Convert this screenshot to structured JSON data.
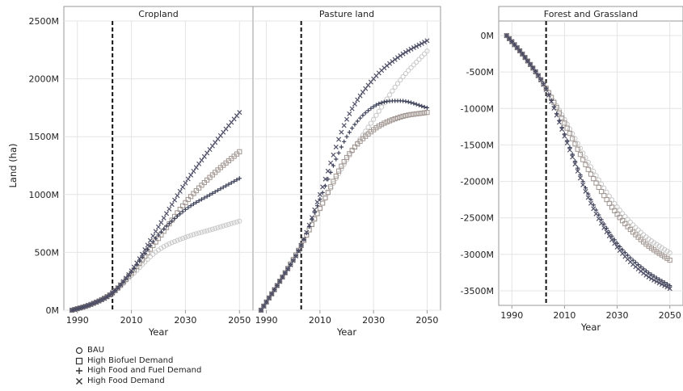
{
  "chart_data": [
    {
      "type": "scatter",
      "title": "Cropland",
      "xlabel": "Year",
      "ylabel": "Land (ha)",
      "xlim": [
        1985,
        2055
      ],
      "ylim": [
        0,
        2500000000
      ],
      "xticks": [
        1990,
        2010,
        2030,
        2050
      ],
      "yticks": [
        0,
        500000000,
        1000000000,
        1500000000,
        2000000000,
        2500000000
      ],
      "ytick_labels": [
        "0M",
        "500M",
        "1000M",
        "1500M",
        "2000M",
        "2500M"
      ],
      "reference_year": 2003,
      "grid": true,
      "series": [
        {
          "name": "BAU",
          "x": [
            1988,
            1995,
            2003,
            2010,
            2020,
            2030,
            2040,
            2050
          ],
          "values": [
            0,
            50000000,
            150000000,
            300000000,
            520000000,
            630000000,
            700000000,
            770000000
          ]
        },
        {
          "name": "High Biofuel Demand",
          "x": [
            1988,
            1995,
            2003,
            2010,
            2020,
            2030,
            2040,
            2050
          ],
          "values": [
            0,
            50000000,
            150000000,
            320000000,
            620000000,
            930000000,
            1170000000,
            1370000000
          ]
        },
        {
          "name": "High Food and Fuel Demand",
          "x": [
            1988,
            1995,
            2003,
            2010,
            2020,
            2030,
            2040,
            2050
          ],
          "values": [
            0,
            50000000,
            150000000,
            330000000,
            650000000,
            870000000,
            1010000000,
            1140000000
          ]
        },
        {
          "name": "High Food Demand",
          "x": [
            1988,
            1995,
            2003,
            2010,
            2020,
            2030,
            2040,
            2050
          ],
          "values": [
            0,
            50000000,
            150000000,
            340000000,
            720000000,
            1100000000,
            1420000000,
            1710000000
          ]
        }
      ]
    },
    {
      "type": "scatter",
      "title": "Pasture land",
      "xlabel": "Year",
      "xlim": [
        1985,
        2055
      ],
      "ylim": [
        0,
        2500000000
      ],
      "xticks": [
        1990,
        2010,
        2030,
        2050
      ],
      "reference_year": 2003,
      "grid": true,
      "series": [
        {
          "name": "BAU",
          "x": [
            1988,
            1995,
            2003,
            2010,
            2020,
            2030,
            2040,
            2050
          ],
          "values": [
            0,
            250000000,
            560000000,
            880000000,
            1300000000,
            1650000000,
            1990000000,
            2240000000
          ]
        },
        {
          "name": "High Biofuel Demand",
          "x": [
            1988,
            1995,
            2003,
            2010,
            2020,
            2030,
            2040,
            2050
          ],
          "values": [
            0,
            250000000,
            560000000,
            880000000,
            1320000000,
            1560000000,
            1670000000,
            1710000000
          ]
        },
        {
          "name": "High Food and Fuel Demand",
          "x": [
            1988,
            1995,
            2003,
            2010,
            2020,
            2030,
            2040,
            2050
          ],
          "values": [
            0,
            250000000,
            560000000,
            960000000,
            1500000000,
            1760000000,
            1810000000,
            1750000000
          ]
        },
        {
          "name": "High Food Demand",
          "x": [
            1988,
            1995,
            2003,
            2010,
            2020,
            2030,
            2040,
            2050
          ],
          "values": [
            0,
            250000000,
            560000000,
            1000000000,
            1650000000,
            2000000000,
            2200000000,
            2330000000
          ]
        }
      ]
    },
    {
      "type": "scatter",
      "title": "Forest and Grassland",
      "xlabel": "Year",
      "xlim": [
        1985,
        2055
      ],
      "ylim": [
        -3700000000,
        200000000
      ],
      "xticks": [
        1990,
        2010,
        2030,
        2050
      ],
      "yticks": [
        0,
        -500000000,
        -1000000000,
        -1500000000,
        -2000000000,
        -2500000000,
        -3000000000,
        -3500000000
      ],
      "ytick_labels": [
        "0M",
        "-500M",
        "-1000M",
        "-1500M",
        "-2000M",
        "-2500M",
        "-3000M",
        "-3500M"
      ],
      "reference_year": 2003,
      "grid": true,
      "series": [
        {
          "name": "BAU",
          "x": [
            1988,
            1995,
            2003,
            2010,
            2020,
            2030,
            2040,
            2050
          ],
          "values": [
            0,
            -300000000,
            -720000000,
            -1150000000,
            -1800000000,
            -2350000000,
            -2730000000,
            -2980000000
          ]
        },
        {
          "name": "High Biofuel Demand",
          "x": [
            1988,
            1995,
            2003,
            2010,
            2020,
            2030,
            2040,
            2050
          ],
          "values": [
            0,
            -300000000,
            -720000000,
            -1200000000,
            -1900000000,
            -2450000000,
            -2830000000,
            -3080000000
          ]
        },
        {
          "name": "High Food and Fuel Demand",
          "x": [
            1988,
            1995,
            2003,
            2010,
            2020,
            2030,
            2040,
            2050
          ],
          "values": [
            0,
            -300000000,
            -730000000,
            -1350000000,
            -2250000000,
            -2850000000,
            -3200000000,
            -3430000000
          ]
        },
        {
          "name": "High Food Demand",
          "x": [
            1988,
            1995,
            2003,
            2010,
            2020,
            2030,
            2040,
            2050
          ],
          "values": [
            0,
            -300000000,
            -740000000,
            -1380000000,
            -2300000000,
            -2900000000,
            -3260000000,
            -3470000000
          ]
        }
      ]
    }
  ],
  "legend": {
    "placement": "bottom-left",
    "items": [
      {
        "label": "BAU",
        "marker": "circle",
        "color": "#c8c8c8"
      },
      {
        "label": "High Biofuel Demand",
        "marker": "square",
        "color": "#a09590"
      },
      {
        "label": "High Food and Fuel Demand",
        "marker": "plus",
        "color": "#3c4058"
      },
      {
        "label": "High Food Demand",
        "marker": "x",
        "color": "#505068"
      }
    ]
  },
  "colors": {
    "axis": "#999999",
    "grid": "#e4e4e4",
    "reference_line": "#111111"
  }
}
